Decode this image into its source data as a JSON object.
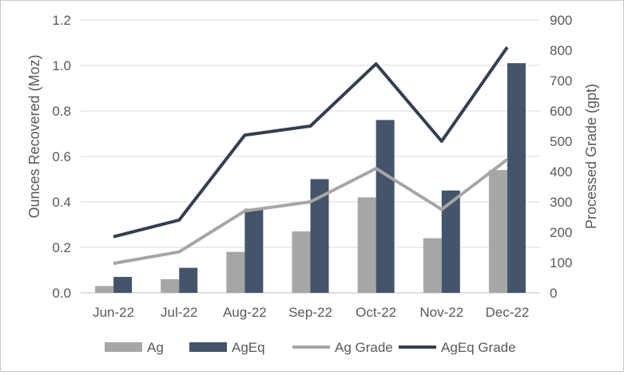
{
  "chart_data": {
    "type": "bar",
    "categories": [
      "Jun-22",
      "Jul-22",
      "Aug-22",
      "Sep-22",
      "Oct-22",
      "Nov-22",
      "Dec-22"
    ],
    "series": [
      {
        "name": "Ag",
        "kind": "bar",
        "axis": "left",
        "color": "#a6a6a6",
        "values": [
          0.03,
          0.06,
          0.18,
          0.27,
          0.42,
          0.24,
          0.54
        ]
      },
      {
        "name": "AgEq",
        "kind": "bar",
        "axis": "left",
        "color": "#44546a",
        "values": [
          0.07,
          0.11,
          0.37,
          0.5,
          0.76,
          0.45,
          1.01
        ]
      },
      {
        "name": "Ag Grade",
        "kind": "line",
        "axis": "right",
        "color": "#a6a6a6",
        "values": [
          97,
          135,
          270,
          300,
          410,
          275,
          440
        ]
      },
      {
        "name": "AgEq Grade",
        "kind": "line",
        "axis": "right",
        "color": "#333f50",
        "values": [
          185,
          240,
          520,
          550,
          755,
          500,
          810
        ]
      }
    ],
    "xlabel": "",
    "ylabel": "Ounces Recovered (Moz)",
    "y2label": "Processed Grade (gpt)",
    "ylim": [
      0,
      1.2
    ],
    "y2lim": [
      0,
      900
    ],
    "yticks": [
      "0.0",
      "0.2",
      "0.4",
      "0.6",
      "0.8",
      "1.0",
      "1.2"
    ],
    "y2ticks": [
      "0",
      "100",
      "200",
      "300",
      "400",
      "500",
      "600",
      "700",
      "800",
      "900"
    ],
    "grid": true,
    "legend_position": "bottom"
  }
}
